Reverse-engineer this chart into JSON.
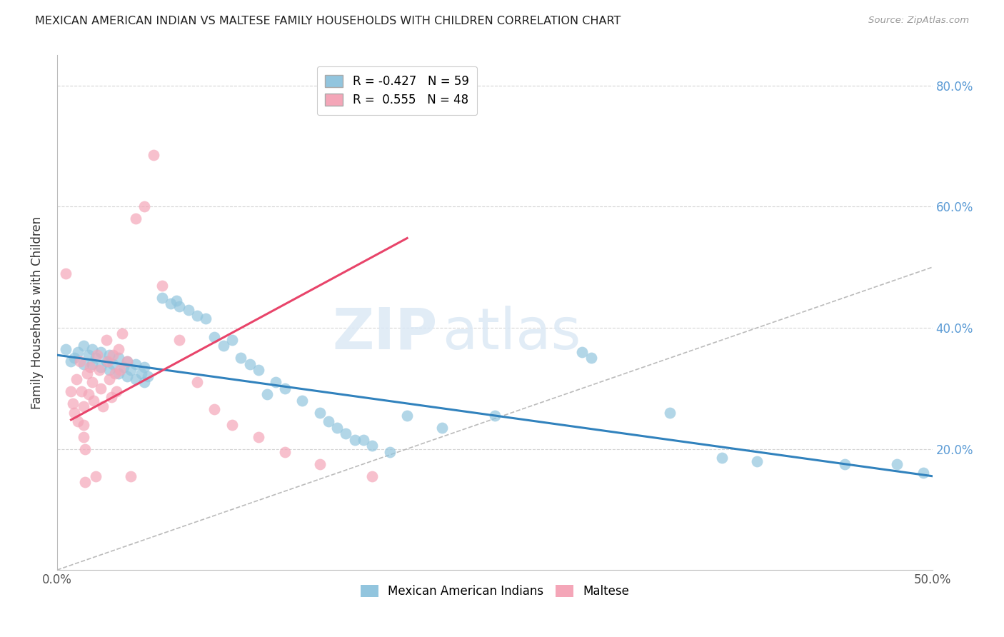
{
  "title": "MEXICAN AMERICAN INDIAN VS MALTESE FAMILY HOUSEHOLDS WITH CHILDREN CORRELATION CHART",
  "source": "Source: ZipAtlas.com",
  "ylabel": "Family Households with Children",
  "xlim": [
    0.0,
    0.5
  ],
  "ylim": [
    0.0,
    0.85
  ],
  "yticks": [
    0.0,
    0.2,
    0.4,
    0.6,
    0.8
  ],
  "ytick_labels": [
    "",
    "20.0%",
    "40.0%",
    "60.0%",
    "80.0%"
  ],
  "xticks": [
    0.0,
    0.1,
    0.2,
    0.3,
    0.4,
    0.5
  ],
  "xtick_labels": [
    "0.0%",
    "",
    "",
    "",
    "",
    "50.0%"
  ],
  "color_blue": "#92c5de",
  "color_pink": "#f4a6b8",
  "color_blue_line": "#3182bd",
  "color_pink_line": "#e8446a",
  "color_diag": "#bbbbbb",
  "color_ytick_right": "#5b9bd5",
  "watermark_zip": "ZIP",
  "watermark_atlas": "atlas",
  "blue_dots": [
    [
      0.005,
      0.365
    ],
    [
      0.008,
      0.345
    ],
    [
      0.01,
      0.35
    ],
    [
      0.012,
      0.36
    ],
    [
      0.015,
      0.37
    ],
    [
      0.015,
      0.34
    ],
    [
      0.018,
      0.355
    ],
    [
      0.02,
      0.365
    ],
    [
      0.02,
      0.34
    ],
    [
      0.022,
      0.35
    ],
    [
      0.025,
      0.36
    ],
    [
      0.025,
      0.335
    ],
    [
      0.028,
      0.345
    ],
    [
      0.03,
      0.355
    ],
    [
      0.03,
      0.33
    ],
    [
      0.032,
      0.34
    ],
    [
      0.035,
      0.35
    ],
    [
      0.035,
      0.325
    ],
    [
      0.038,
      0.335
    ],
    [
      0.04,
      0.345
    ],
    [
      0.04,
      0.32
    ],
    [
      0.042,
      0.33
    ],
    [
      0.045,
      0.34
    ],
    [
      0.045,
      0.315
    ],
    [
      0.048,
      0.325
    ],
    [
      0.05,
      0.335
    ],
    [
      0.05,
      0.31
    ],
    [
      0.052,
      0.32
    ],
    [
      0.06,
      0.45
    ],
    [
      0.065,
      0.44
    ],
    [
      0.068,
      0.445
    ],
    [
      0.07,
      0.435
    ],
    [
      0.075,
      0.43
    ],
    [
      0.08,
      0.42
    ],
    [
      0.085,
      0.415
    ],
    [
      0.09,
      0.385
    ],
    [
      0.095,
      0.37
    ],
    [
      0.1,
      0.38
    ],
    [
      0.105,
      0.35
    ],
    [
      0.11,
      0.34
    ],
    [
      0.115,
      0.33
    ],
    [
      0.12,
      0.29
    ],
    [
      0.125,
      0.31
    ],
    [
      0.13,
      0.3
    ],
    [
      0.14,
      0.28
    ],
    [
      0.15,
      0.26
    ],
    [
      0.155,
      0.245
    ],
    [
      0.16,
      0.235
    ],
    [
      0.165,
      0.225
    ],
    [
      0.17,
      0.215
    ],
    [
      0.175,
      0.215
    ],
    [
      0.18,
      0.205
    ],
    [
      0.19,
      0.195
    ],
    [
      0.2,
      0.255
    ],
    [
      0.22,
      0.235
    ],
    [
      0.25,
      0.255
    ],
    [
      0.3,
      0.36
    ],
    [
      0.305,
      0.35
    ],
    [
      0.35,
      0.26
    ],
    [
      0.38,
      0.185
    ],
    [
      0.4,
      0.18
    ],
    [
      0.45,
      0.175
    ],
    [
      0.48,
      0.175
    ],
    [
      0.495,
      0.16
    ]
  ],
  "pink_dots": [
    [
      0.005,
      0.49
    ],
    [
      0.008,
      0.295
    ],
    [
      0.009,
      0.275
    ],
    [
      0.01,
      0.26
    ],
    [
      0.011,
      0.315
    ],
    [
      0.012,
      0.245
    ],
    [
      0.013,
      0.345
    ],
    [
      0.014,
      0.295
    ],
    [
      0.015,
      0.27
    ],
    [
      0.015,
      0.24
    ],
    [
      0.015,
      0.22
    ],
    [
      0.016,
      0.2
    ],
    [
      0.016,
      0.145
    ],
    [
      0.017,
      0.325
    ],
    [
      0.018,
      0.29
    ],
    [
      0.019,
      0.335
    ],
    [
      0.02,
      0.31
    ],
    [
      0.021,
      0.28
    ],
    [
      0.022,
      0.155
    ],
    [
      0.023,
      0.355
    ],
    [
      0.024,
      0.33
    ],
    [
      0.025,
      0.3
    ],
    [
      0.026,
      0.27
    ],
    [
      0.028,
      0.38
    ],
    [
      0.029,
      0.345
    ],
    [
      0.03,
      0.315
    ],
    [
      0.031,
      0.285
    ],
    [
      0.032,
      0.355
    ],
    [
      0.033,
      0.325
    ],
    [
      0.034,
      0.295
    ],
    [
      0.035,
      0.365
    ],
    [
      0.036,
      0.33
    ],
    [
      0.037,
      0.39
    ],
    [
      0.04,
      0.345
    ],
    [
      0.042,
      0.155
    ],
    [
      0.045,
      0.58
    ],
    [
      0.05,
      0.6
    ],
    [
      0.055,
      0.685
    ],
    [
      0.06,
      0.47
    ],
    [
      0.07,
      0.38
    ],
    [
      0.08,
      0.31
    ],
    [
      0.09,
      0.265
    ],
    [
      0.1,
      0.24
    ],
    [
      0.115,
      0.22
    ],
    [
      0.13,
      0.195
    ],
    [
      0.15,
      0.175
    ],
    [
      0.18,
      0.155
    ]
  ],
  "blue_line": {
    "x0": 0.0,
    "x1": 0.5,
    "y0": 0.355,
    "y1": 0.155
  },
  "pink_line": {
    "x0": 0.008,
    "x1": 0.2,
    "y0": 0.248,
    "y1": 0.548
  }
}
